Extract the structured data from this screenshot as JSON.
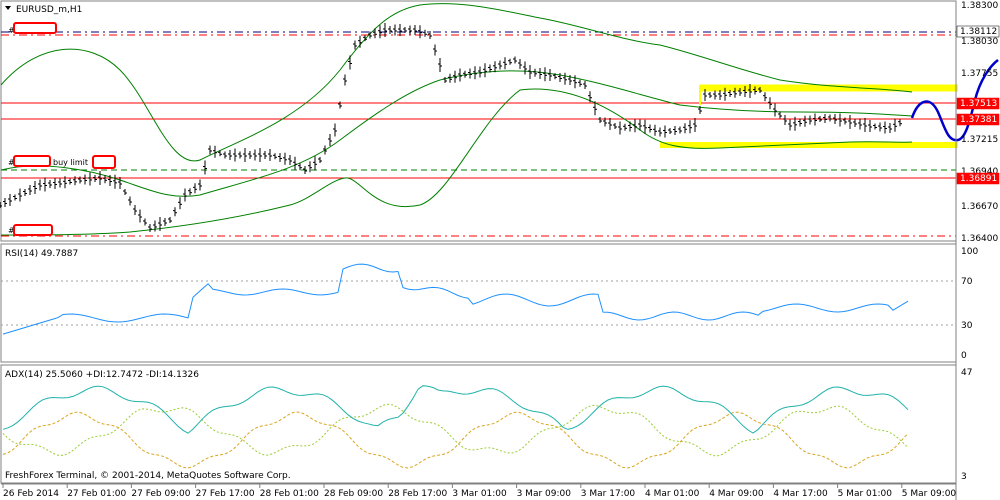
{
  "window": {
    "symbol_title": "EURUSD_m,H1",
    "copyright": "FreshForex Terminal, © 2001-2014, MetaQuotes Software Corp."
  },
  "orders": {
    "buy_limit_label": "buy limit",
    "hash_prefix": "#"
  },
  "main_panel": {
    "price_scale": [
      "1.38300",
      "1.38030",
      "1.37755",
      "1.37215",
      "1.36940",
      "1.36670",
      "1.36400"
    ],
    "price_tags": [
      {
        "text": "1.38112",
        "color": "#ffffff",
        "text_color": "#000000",
        "price": 1.38112
      },
      {
        "text": "1.37513",
        "color": "#ff0000",
        "text_color": "#ffffff",
        "price": 1.37513
      },
      {
        "text": "1.37381",
        "color": "#ff0000",
        "text_color": "#ffffff",
        "price": 1.37381
      },
      {
        "text": "1.36891",
        "color": "#ff0000",
        "text_color": "#ffffff",
        "price": 1.36891
      }
    ]
  },
  "rsi_panel": {
    "title": "RSI(14) 49.7887",
    "scale": [
      "100",
      "70",
      "30",
      "0"
    ]
  },
  "adx_panel": {
    "title": "ADX(14) 25.5060 +DI:12.7472 -DI:14.1326",
    "scale": [
      "47",
      "3"
    ]
  },
  "time_axis": [
    "26 Feb 2014",
    "27 Feb 01:00",
    "27 Feb 09:00",
    "27 Feb 17:00",
    "28 Feb 01:00",
    "28 Feb 09:00",
    "28 Feb 17:00",
    "3 Mar 01:00",
    "3 Mar 09:00",
    "3 Mar 17:00",
    "4 Mar 01:00",
    "4 Mar 09:00",
    "4 Mar 17:00",
    "5 Mar 01:00",
    "5 Mar 09:00"
  ],
  "colors": {
    "background": "#ffffff",
    "bars": "#000000",
    "bollinger": "#008000",
    "rsi_line": "#1e90ff",
    "adx_line": "#20b2aa",
    "di_plus": "#9acd32",
    "di_minus": "#daa520",
    "level_lines": "#ff0000",
    "zone_highlight": "#ffff00",
    "projection": "#0000cd",
    "order_box": "#ff0000"
  },
  "icons": {
    "dropdown": "triangle-down-icon"
  }
}
